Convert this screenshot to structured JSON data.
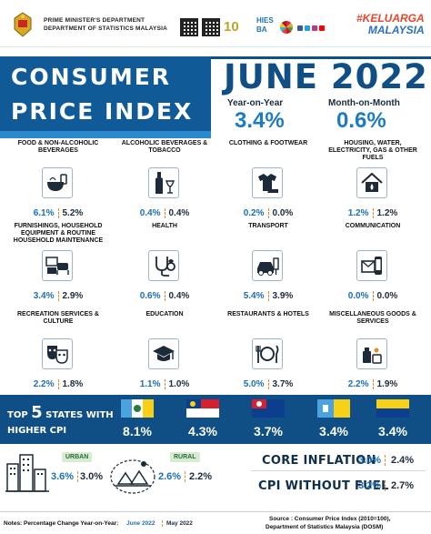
{
  "header": {
    "dept_line1": "PRIME MINISTER'S DEPARTMENT",
    "dept_line2": "DEPARTMENT OF STATISTICS MALAYSIA",
    "logo_10": "10",
    "logo_hies": "HIES",
    "logo_ba": "BA",
    "kel_1": "#KELUARGA",
    "kel_2": "MALAYSIA"
  },
  "title": {
    "line1": "CONSUMER",
    "line2": "PRICE INDEX",
    "month": "JUNE 2022"
  },
  "headline": {
    "yoy_label": "Year-on-Year",
    "yoy_value": "3.4%",
    "mom_label": "Month-on-Month",
    "mom_value": "0.6%"
  },
  "categories": [
    {
      "label": "FOOD & NON-ALCOHOLIC BEVERAGES",
      "yoy": "6.1%",
      "mom": "5.2%",
      "icon": "food-icon"
    },
    {
      "label": "ALCOHOLIC BEVERAGES & TOBACCO",
      "yoy": "0.4%",
      "mom": "0.4%",
      "icon": "bottle-icon"
    },
    {
      "label": "CLOTHING & FOOTWEAR",
      "yoy": "0.2%",
      "mom": "0.0%",
      "icon": "clothing-icon"
    },
    {
      "label": "HOUSING, WATER, ELECTRICITY, GAS & OTHER FUELS",
      "yoy": "1.2%",
      "mom": "1.2%",
      "icon": "house-icon"
    },
    {
      "label": "FURNISHINGS, HOUSEHOLD EQUIPMENT & ROUTINE HOUSEHOLD MAINTENANCE",
      "yoy": "3.4%",
      "mom": "2.9%",
      "icon": "furniture-icon"
    },
    {
      "label": "HEALTH",
      "yoy": "0.6%",
      "mom": "0.4%",
      "icon": "stethoscope-icon"
    },
    {
      "label": "TRANSPORT",
      "yoy": "5.4%",
      "mom": "3.9%",
      "icon": "car-icon"
    },
    {
      "label": "COMMUNICATION",
      "yoy": "0.0%",
      "mom": "0.0%",
      "icon": "phone-icon"
    },
    {
      "label": "RECREATION SERVICES & CULTURE",
      "yoy": "2.2%",
      "mom": "1.8%",
      "icon": "masks-icon"
    },
    {
      "label": "EDUCATION",
      "yoy": "1.1%",
      "mom": "1.0%",
      "icon": "graduation-cap-icon"
    },
    {
      "label": "RESTAURANTS & HOTELS",
      "yoy": "5.0%",
      "mom": "3.7%",
      "icon": "dining-icon"
    },
    {
      "label": "MISCELLANEOUS GOODS & SERVICES",
      "yoy": "2.2%",
      "mom": "1.9%",
      "icon": "toiletries-icon"
    }
  ],
  "states": {
    "title_top": "TOP",
    "title_num": "5",
    "title_rest": "STATES WITH",
    "title_line2": "HIGHER CPI",
    "values": [
      "8.1%",
      "4.3%",
      "3.7%",
      "3.4%",
      "3.4%"
    ]
  },
  "urban": {
    "label": "URBAN",
    "yoy": "3.6%",
    "mom": "3.0%"
  },
  "rural": {
    "label": "RURAL",
    "yoy": "2.6%",
    "mom": "2.2%"
  },
  "core": {
    "label": "CORE INFLATION",
    "yoy": "3.0%",
    "mom": "2.4%"
  },
  "nofuel": {
    "label": "CPI WITHOUT FUEL",
    "yoy": "3.2%",
    "mom": "2.7%"
  },
  "footer": {
    "notes": "Notes: Percentage Change Year-on-Year:",
    "june": "June 2022",
    "may": "May 2022",
    "source1": "Source : Consumer Price Index (2010=100),",
    "source2": "Department of Statistics Malaysia (DOSM)"
  },
  "colors": {
    "accent": "#0f4f86",
    "yoy_blue": "#1b7bc5",
    "dash_orange": "#e28b2e"
  }
}
